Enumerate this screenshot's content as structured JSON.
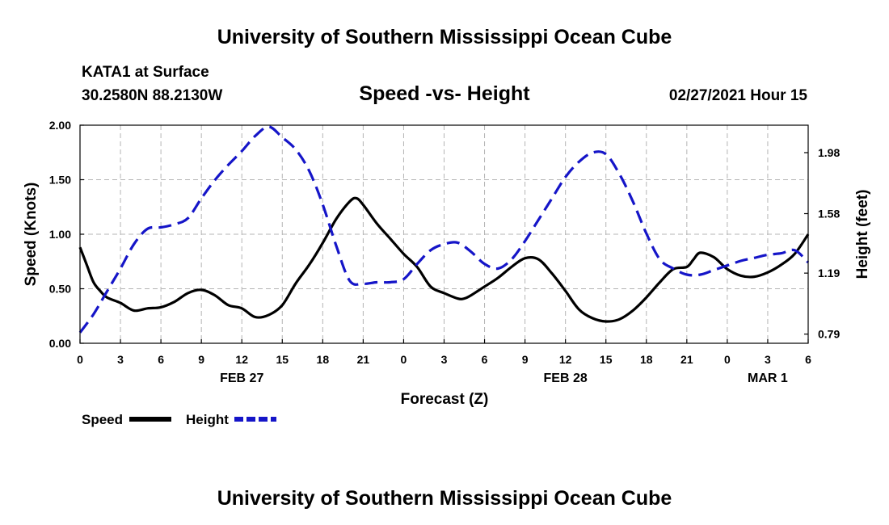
{
  "header": {
    "title_top": "University of Southern Mississippi Ocean Cube",
    "station": "KATA1 at Surface",
    "coords": "30.2580N 88.2130W",
    "chart_title": "Speed -vs- Height",
    "datetime": "02/27/2021 Hour 15"
  },
  "footer": {
    "title_bottom": "University of Southern Mississippi Ocean Cube"
  },
  "colors": {
    "speed": "#000000",
    "height": "#1515c8",
    "grid": "#b4b4b4"
  },
  "chart_data": {
    "type": "line",
    "title": "Speed -vs- Height",
    "xlabel": "Forecast (Z)",
    "ylabel": "Speed (Knots)",
    "y2label": "Height (feet)",
    "xlim": [
      0,
      54
    ],
    "ylim": [
      0,
      2
    ],
    "y2lim": [
      0.73,
      2.16
    ],
    "grid": true,
    "x_ticks": [
      0,
      3,
      6,
      9,
      12,
      15,
      18,
      21,
      24,
      27,
      30,
      33,
      36,
      39,
      42,
      45,
      48,
      51,
      54
    ],
    "x_tick_labels": [
      "0",
      "3",
      "6",
      "9",
      "12",
      "15",
      "18",
      "21",
      "0",
      "3",
      "6",
      "9",
      "12",
      "15",
      "18",
      "21",
      "0",
      "3",
      "6"
    ],
    "y_ticks": [
      0,
      0.5,
      1,
      1.5,
      2
    ],
    "y_tick_labels": [
      "0.00",
      "0.50",
      "1.00",
      "1.50",
      "2.00"
    ],
    "y2_ticks": [
      0.79,
      1.19,
      1.58,
      1.98
    ],
    "y2_tick_labels": [
      "0.79",
      "1.19",
      "1.58",
      "1.98"
    ],
    "date_labels": [
      {
        "x": 12,
        "label": "FEB 27"
      },
      {
        "x": 36,
        "label": "FEB 28"
      },
      {
        "x": 51,
        "label": "MAR 1"
      }
    ],
    "legend": [
      {
        "label": "Speed",
        "style": "solid"
      },
      {
        "label": "Height",
        "style": "dashed"
      }
    ],
    "series": [
      {
        "name": "Speed",
        "axis": "left",
        "x": [
          0,
          0.5,
          1,
          1.5,
          2,
          3,
          4,
          5,
          6,
          7,
          8,
          9,
          10,
          11,
          12,
          13,
          14,
          15,
          16,
          17,
          18,
          19,
          20,
          20.5,
          21,
          22,
          23,
          24,
          25,
          26,
          27,
          28,
          28.5,
          29,
          30,
          31,
          32,
          33,
          34,
          35,
          36,
          37,
          38,
          39,
          40,
          41,
          42,
          43,
          44,
          45,
          45.5,
          46,
          47,
          48,
          49,
          50,
          51,
          52,
          53,
          54
        ],
        "y": [
          0.88,
          0.72,
          0.56,
          0.48,
          0.42,
          0.37,
          0.3,
          0.32,
          0.33,
          0.38,
          0.46,
          0.49,
          0.44,
          0.35,
          0.32,
          0.24,
          0.26,
          0.35,
          0.55,
          0.72,
          0.92,
          1.14,
          1.3,
          1.33,
          1.27,
          1.1,
          0.96,
          0.82,
          0.7,
          0.52,
          0.46,
          0.41,
          0.41,
          0.44,
          0.52,
          0.6,
          0.7,
          0.78,
          0.77,
          0.64,
          0.48,
          0.31,
          0.23,
          0.2,
          0.22,
          0.3,
          0.42,
          0.56,
          0.68,
          0.7,
          0.77,
          0.83,
          0.79,
          0.68,
          0.62,
          0.61,
          0.65,
          0.72,
          0.82,
          1.0
        ]
      },
      {
        "name": "Height",
        "axis": "right",
        "x": [
          0,
          1,
          2,
          3,
          4,
          5,
          6,
          7,
          8,
          9,
          10,
          11,
          12,
          13,
          14,
          15,
          16,
          17,
          18,
          19,
          20,
          21,
          22,
          23,
          24,
          25,
          26,
          27,
          28,
          29,
          30,
          31,
          32,
          33,
          34,
          35,
          36,
          37,
          38,
          39,
          40,
          41,
          42,
          43,
          44,
          45,
          46,
          47,
          48,
          49,
          50,
          51,
          52,
          53,
          54
        ],
        "y": [
          0.8,
          0.92,
          1.07,
          1.22,
          1.38,
          1.48,
          1.49,
          1.51,
          1.55,
          1.68,
          1.8,
          1.9,
          1.99,
          2.09,
          2.15,
          2.08,
          2.0,
          1.86,
          1.64,
          1.37,
          1.14,
          1.12,
          1.13,
          1.13,
          1.15,
          1.25,
          1.34,
          1.38,
          1.39,
          1.33,
          1.25,
          1.22,
          1.28,
          1.4,
          1.54,
          1.68,
          1.82,
          1.92,
          1.98,
          1.97,
          1.84,
          1.66,
          1.45,
          1.28,
          1.22,
          1.18,
          1.18,
          1.21,
          1.24,
          1.27,
          1.29,
          1.31,
          1.32,
          1.34,
          1.26
        ]
      }
    ]
  }
}
